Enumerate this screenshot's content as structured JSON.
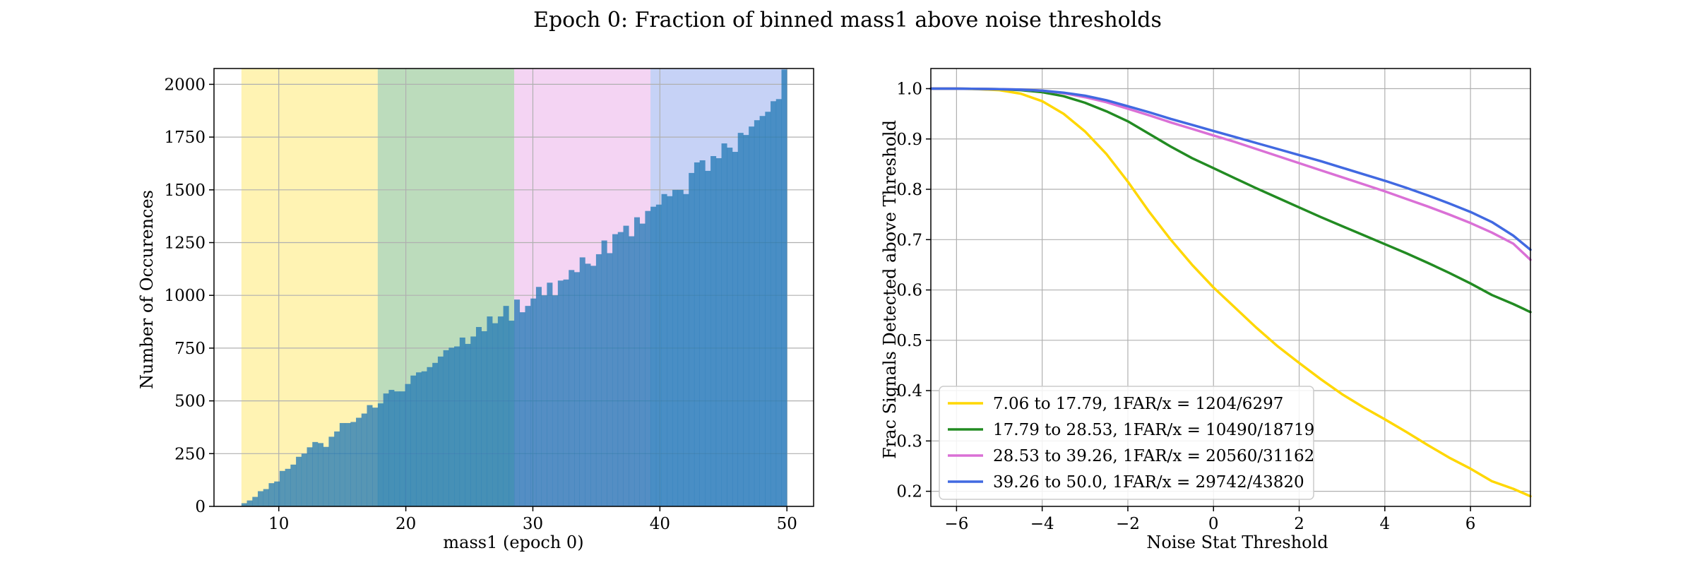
{
  "figure": {
    "suptitle": "Epoch 0: Fraction of binned mass1 above noise thresholds"
  },
  "chart_data": [
    {
      "type": "bar",
      "subtype": "histogram",
      "xlabel": "mass1 (epoch 0)",
      "ylabel": "Number of Occurences",
      "xlim": [
        4.9,
        52.1
      ],
      "ylim": [
        0,
        2075
      ],
      "xticks": [
        10,
        20,
        30,
        40,
        50
      ],
      "yticks": [
        0,
        250,
        500,
        750,
        1000,
        1250,
        1500,
        1750,
        2000
      ],
      "grid": true,
      "bins": {
        "start": 7.06,
        "end": 50.0,
        "count": 100
      },
      "bands": [
        {
          "from": 7.06,
          "to": 17.79,
          "color": "#ffe040",
          "alpha": 0.4
        },
        {
          "from": 17.79,
          "to": 28.53,
          "color": "#228b22",
          "alpha": 0.3
        },
        {
          "from": 28.53,
          "to": 39.26,
          "color": "#da70d6",
          "alpha": 0.3
        },
        {
          "from": 39.26,
          "to": 50.0,
          "color": "#4169e1",
          "alpha": 0.3
        }
      ],
      "bar_color": "#1f77b4",
      "bar_alpha": 0.75,
      "counts": [
        15,
        28,
        45,
        72,
        82,
        110,
        118,
        168,
        178,
        198,
        235,
        250,
        280,
        305,
        300,
        282,
        330,
        355,
        395,
        395,
        400,
        420,
        440,
        480,
        468,
        488,
        535,
        552,
        545,
        545,
        580,
        620,
        635,
        640,
        660,
        680,
        710,
        740,
        752,
        758,
        800,
        770,
        805,
        850,
        830,
        900,
        868,
        900,
        950,
        880,
        980,
        920,
        950,
        985,
        1040,
        1000,
        1060,
        1000,
        1070,
        1075,
        1120,
        1110,
        1180,
        1150,
        1140,
        1195,
        1260,
        1200,
        1290,
        1300,
        1330,
        1280,
        1370,
        1340,
        1400,
        1420,
        1430,
        1480,
        1470,
        1500,
        1500,
        1480,
        1580,
        1630,
        1640,
        1590,
        1660,
        1650,
        1720,
        1700,
        1680,
        1770,
        1760,
        1800,
        1830,
        1850,
        1870,
        1920,
        1930,
        2070
      ]
    },
    {
      "type": "line",
      "xlabel": "Noise Stat Threshold",
      "ylabel": "Frac Signals Detected above Threshold",
      "xlim": [
        -6.6,
        7.4
      ],
      "ylim": [
        0.17,
        1.04
      ],
      "xticks": [
        -6,
        -4,
        -2,
        0,
        2,
        4,
        6
      ],
      "yticks": [
        0.2,
        0.3,
        0.4,
        0.5,
        0.6,
        0.7,
        0.8,
        0.9,
        1.0
      ],
      "grid": true,
      "legend_position": "lower-left",
      "series": [
        {
          "name": "7.06 to 17.79, 1FAR/x = 1204/6297",
          "color": "#ffd700",
          "x": [
            -6.6,
            -6,
            -5.5,
            -5,
            -4.5,
            -4,
            -3.5,
            -3,
            -2.5,
            -2,
            -1.5,
            -1,
            -0.5,
            0,
            0.5,
            1,
            1.5,
            2,
            2.5,
            3,
            3.5,
            4,
            4.5,
            5,
            5.5,
            6,
            6.5,
            7,
            7.4
          ],
          "y": [
            1.0,
            1.0,
            0.999,
            0.997,
            0.99,
            0.975,
            0.95,
            0.915,
            0.87,
            0.815,
            0.755,
            0.7,
            0.65,
            0.605,
            0.565,
            0.525,
            0.488,
            0.455,
            0.423,
            0.393,
            0.367,
            0.343,
            0.318,
            0.292,
            0.267,
            0.245,
            0.22,
            0.205,
            0.19
          ]
        },
        {
          "name": "17.79 to 28.53, 1FAR/x = 10490/18719",
          "color": "#228b22",
          "x": [
            -6.6,
            -6,
            -5,
            -4.5,
            -4,
            -3.5,
            -3,
            -2.5,
            -2,
            -1.5,
            -1,
            -0.5,
            0,
            0.5,
            1,
            1.5,
            2,
            2.5,
            3,
            3.5,
            4,
            4.5,
            5,
            5.5,
            6,
            6.5,
            7,
            7.4
          ],
          "y": [
            1.0,
            1.0,
            0.999,
            0.997,
            0.993,
            0.985,
            0.972,
            0.955,
            0.935,
            0.91,
            0.885,
            0.862,
            0.842,
            0.822,
            0.802,
            0.783,
            0.764,
            0.745,
            0.727,
            0.709,
            0.691,
            0.673,
            0.654,
            0.634,
            0.613,
            0.59,
            0.572,
            0.556
          ]
        },
        {
          "name": "28.53 to 39.26, 1FAR/x = 20560/31162",
          "color": "#da70d6",
          "x": [
            -6.6,
            -6,
            -5,
            -4.5,
            -4,
            -3.5,
            -3,
            -2.5,
            -2,
            -1.5,
            -1,
            -0.5,
            0,
            0.5,
            1,
            1.5,
            2,
            2.5,
            3,
            3.5,
            4,
            4.5,
            5,
            5.5,
            6,
            6.5,
            7,
            7.4
          ],
          "y": [
            1.0,
            1.0,
            0.999,
            0.998,
            0.996,
            0.991,
            0.983,
            0.973,
            0.96,
            0.947,
            0.933,
            0.92,
            0.907,
            0.894,
            0.88,
            0.866,
            0.852,
            0.838,
            0.824,
            0.81,
            0.796,
            0.781,
            0.766,
            0.75,
            0.733,
            0.714,
            0.692,
            0.66
          ]
        },
        {
          "name": "39.26 to 50.0, 1FAR/x = 29742/43820",
          "color": "#4169e1",
          "x": [
            -6.6,
            -6,
            -5,
            -4.5,
            -4,
            -3.5,
            -3,
            -2.5,
            -2,
            -1.5,
            -1,
            -0.5,
            0,
            0.5,
            1,
            1.5,
            2,
            2.5,
            3,
            3.5,
            4,
            4.5,
            5,
            5.5,
            6,
            6.5,
            7,
            7.4
          ],
          "y": [
            1.0,
            1.0,
            0.999,
            0.998,
            0.996,
            0.992,
            0.986,
            0.977,
            0.965,
            0.953,
            0.94,
            0.928,
            0.916,
            0.904,
            0.892,
            0.88,
            0.868,
            0.856,
            0.843,
            0.83,
            0.817,
            0.803,
            0.788,
            0.772,
            0.755,
            0.735,
            0.708,
            0.68
          ]
        }
      ]
    }
  ]
}
